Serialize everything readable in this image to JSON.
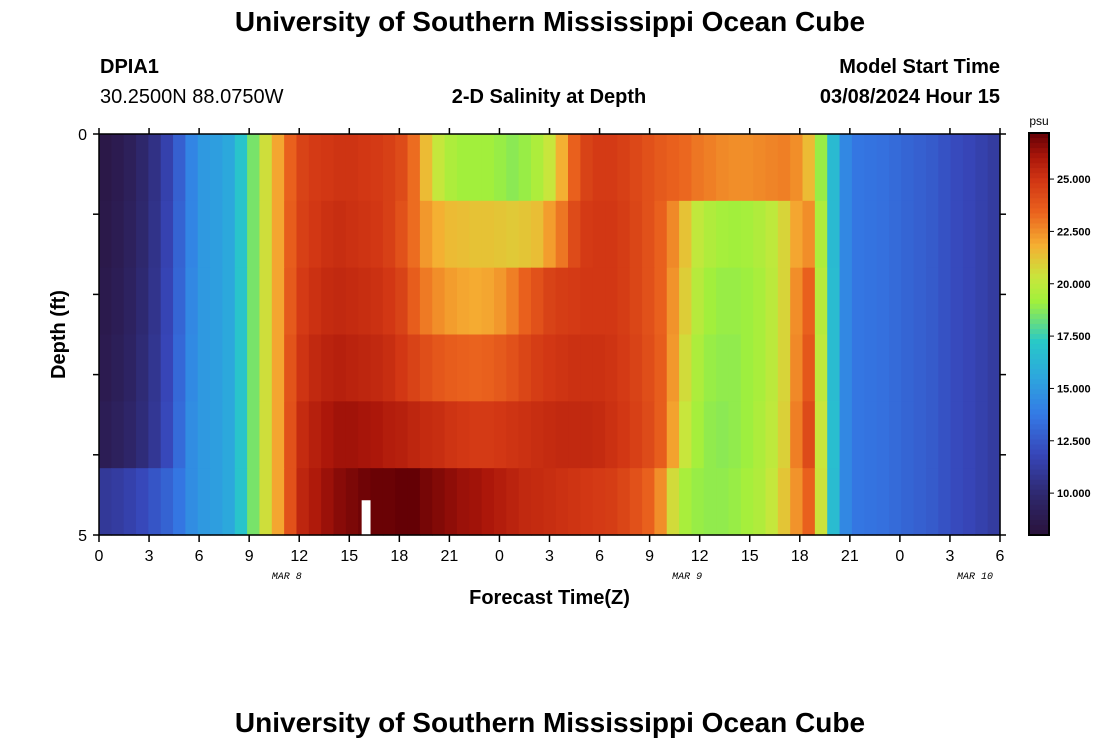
{
  "page": {
    "title": "University of Southern Mississippi Ocean Cube",
    "footer_title": "University of Southern Mississippi Ocean Cube",
    "station": "DPIA1",
    "coords": "30.2500N  88.0750W",
    "chart_heading": "2-D Salinity at Depth",
    "model_label": "Model Start Time",
    "model_time": "03/08/2024 Hour 15"
  },
  "chart_data": {
    "type": "heatmap",
    "title": "2-D Salinity at Depth",
    "xlabel": "Forecast Time(Z)",
    "ylabel": "Depth (ft)",
    "x_tick_labels": [
      "0",
      "3",
      "6",
      "9",
      "12",
      "15",
      "18",
      "21",
      "0",
      "3",
      "6",
      "9",
      "12",
      "15",
      "18",
      "21",
      "0",
      "3",
      "6"
    ],
    "x_day_labels": [
      {
        "label": "MAR 8",
        "tick_index": 3.75
      },
      {
        "label": "MAR 9",
        "tick_index": 11.75
      },
      {
        "label": "MAR 10",
        "tick_index": 17.5
      }
    ],
    "y_tick_labels": [
      "0",
      "5"
    ],
    "y_range": [
      0,
      5
    ],
    "colorbar": {
      "unit": "psu",
      "min": 8.0,
      "max": 27.2,
      "ticks": [
        "25.000",
        "22.500",
        "20.000",
        "17.500",
        "15.000",
        "12.500",
        "10.000"
      ],
      "tick_values": [
        25.0,
        22.5,
        20.0,
        17.5,
        15.0,
        12.5,
        10.0
      ]
    },
    "missing_hour_index": 21,
    "hours_per_column": 1,
    "depth_rows": 6,
    "values": [
      [
        8.5,
        8.8,
        9.2,
        9.8,
        10.5,
        11.5,
        12.8,
        14.2,
        15.0,
        15.2,
        15.6,
        17.0,
        18.5,
        20.5,
        22.0,
        23.5,
        24.5,
        24.8,
        24.9,
        25.0,
        25.0,
        24.9,
        24.8,
        24.6,
        24.2,
        23.2,
        21.5,
        20.2,
        19.5,
        19.2,
        19.2,
        19.2,
        19.0,
        18.8,
        19.0,
        19.5,
        20.3,
        21.8,
        23.5,
        24.5,
        24.8,
        24.8,
        24.6,
        24.3,
        24.0,
        23.7,
        23.5,
        23.3,
        23.0,
        22.8,
        22.6,
        22.5,
        22.5,
        22.6,
        22.7,
        22.8,
        22.5,
        21.5,
        19.0,
        16.5,
        14.3,
        13.6,
        13.5,
        13.4,
        13.2,
        13.0,
        12.8,
        12.6,
        12.3,
        12.0,
        11.8,
        11.5,
        11.2
      ],
      [
        8.6,
        8.9,
        9.3,
        9.9,
        10.6,
        11.6,
        12.9,
        14.2,
        15.0,
        15.2,
        15.6,
        17.0,
        18.5,
        20.5,
        22.0,
        23.6,
        24.6,
        24.9,
        25.1,
        25.2,
        25.1,
        25.0,
        24.9,
        24.6,
        24.0,
        23.2,
        22.3,
        21.8,
        21.5,
        21.4,
        21.3,
        21.3,
        21.2,
        21.1,
        21.2,
        21.4,
        22.2,
        23.0,
        24.2,
        24.8,
        24.9,
        24.9,
        24.7,
        24.4,
        24.0,
        23.5,
        22.6,
        21.3,
        20.1,
        19.6,
        19.3,
        19.2,
        19.3,
        19.6,
        20.0,
        20.8,
        22.0,
        22.5,
        19.5,
        16.5,
        14.3,
        13.6,
        13.5,
        13.4,
        13.2,
        13.0,
        12.8,
        12.6,
        12.3,
        12.0,
        11.8,
        11.5,
        11.2
      ],
      [
        8.7,
        9.0,
        9.4,
        10.0,
        10.7,
        11.7,
        13.0,
        14.3,
        15.0,
        15.2,
        15.6,
        17.0,
        18.5,
        20.5,
        22.0,
        23.7,
        24.8,
        25.1,
        25.3,
        25.4,
        25.3,
        25.2,
        25.1,
        24.9,
        24.5,
        23.6,
        22.9,
        22.5,
        22.2,
        22.0,
        21.9,
        22.0,
        22.3,
        22.8,
        23.5,
        24.0,
        24.5,
        24.7,
        24.8,
        24.9,
        24.9,
        24.9,
        24.7,
        24.4,
        24.0,
        23.5,
        22.4,
        21.0,
        19.8,
        19.2,
        19.0,
        19.0,
        19.1,
        19.4,
        19.9,
        20.8,
        22.5,
        23.5,
        19.8,
        16.6,
        14.3,
        13.6,
        13.5,
        13.4,
        13.2,
        13.0,
        12.8,
        12.6,
        12.3,
        12.0,
        11.8,
        11.5,
        11.2
      ],
      [
        8.8,
        9.1,
        9.5,
        10.1,
        10.8,
        11.8,
        13.1,
        14.4,
        15.0,
        15.2,
        15.6,
        17.0,
        18.5,
        20.5,
        22.0,
        23.9,
        25.0,
        25.4,
        25.6,
        25.7,
        25.6,
        25.5,
        25.4,
        25.2,
        24.9,
        24.5,
        24.1,
        23.8,
        23.6,
        23.5,
        23.4,
        23.5,
        23.7,
        24.0,
        24.4,
        24.7,
        24.9,
        25.0,
        25.1,
        25.1,
        25.1,
        25.0,
        24.8,
        24.5,
        24.1,
        23.6,
        22.3,
        20.6,
        19.5,
        19.0,
        18.9,
        18.9,
        19.1,
        19.4,
        19.9,
        20.8,
        22.6,
        23.8,
        20.0,
        16.6,
        14.3,
        13.6,
        13.5,
        13.4,
        13.2,
        13.0,
        12.8,
        12.6,
        12.3,
        12.0,
        11.8,
        11.5,
        11.2
      ],
      [
        9.0,
        9.3,
        9.7,
        10.2,
        10.9,
        11.9,
        13.2,
        14.5,
        15.0,
        15.2,
        15.6,
        17.0,
        18.5,
        20.5,
        22.0,
        24.0,
        25.3,
        25.7,
        26.0,
        26.2,
        26.2,
        26.1,
        26.0,
        25.8,
        25.7,
        25.5,
        25.3,
        25.2,
        25.0,
        24.9,
        24.8,
        24.8,
        24.9,
        25.0,
        25.1,
        25.2,
        25.3,
        25.4,
        25.4,
        25.4,
        25.3,
        25.1,
        24.9,
        24.6,
        24.2,
        23.6,
        22.1,
        20.3,
        19.3,
        18.9,
        18.8,
        18.9,
        19.1,
        19.5,
        20.0,
        20.9,
        22.8,
        24.2,
        20.3,
        16.7,
        14.3,
        13.6,
        13.5,
        13.4,
        13.2,
        13.0,
        12.8,
        12.6,
        12.3,
        12.0,
        11.8,
        11.5,
        11.2
      ],
      [
        11.0,
        11.2,
        11.5,
        11.9,
        12.4,
        12.9,
        13.6,
        14.5,
        15.0,
        15.2,
        15.6,
        17.0,
        18.5,
        20.5,
        22.0,
        24.0,
        25.5,
        25.9,
        26.3,
        26.6,
        26.8,
        27.0,
        27.1,
        27.1,
        27.2,
        27.2,
        26.9,
        26.7,
        26.5,
        26.3,
        26.2,
        26.0,
        25.8,
        25.6,
        25.4,
        25.3,
        25.2,
        25.1,
        25.0,
        24.9,
        24.8,
        24.7,
        24.4,
        24.0,
        23.5,
        22.5,
        20.6,
        19.4,
        19.0,
        18.9,
        18.9,
        19.0,
        19.3,
        19.6,
        20.2,
        21.2,
        22.4,
        23.5,
        20.4,
        16.6,
        14.3,
        13.6,
        13.5,
        13.4,
        13.2,
        13.0,
        12.8,
        12.6,
        12.3,
        12.0,
        11.8,
        11.5,
        11.2
      ]
    ]
  }
}
